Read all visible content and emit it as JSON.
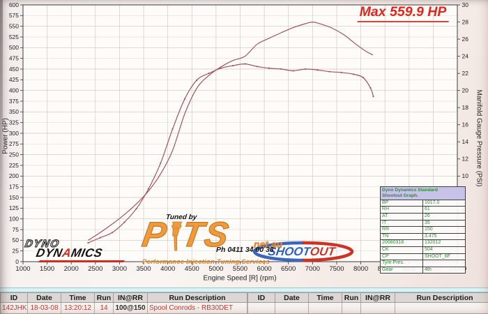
{
  "annotation": {
    "max_hp_label": "Max 559.9 HP"
  },
  "chart_data": {
    "type": "line",
    "title": "",
    "xlabel": "Engine Speed [R] (rpm)",
    "ylabel_left": "Power (HP)",
    "ylabel_right": "Manifold Gauge Pressure (PSI)",
    "x_axis": {
      "min": 1000,
      "max": 10000,
      "tick_step": 500
    },
    "y_left_axis": {
      "min": 0,
      "max": 600,
      "tick_step": 25
    },
    "y_right_axis": {
      "min": 0,
      "max": 30,
      "tick_step": 2
    },
    "grid": true,
    "line_color": "#a5525a",
    "max_power_hp": 559.9,
    "series": [
      {
        "name": "Power (HP)",
        "axis": "left",
        "markers": false,
        "x": [
          2350,
          2600,
          2850,
          3100,
          3350,
          3600,
          3850,
          4100,
          4350,
          4600,
          4850,
          5100,
          5350,
          5600,
          5850,
          6100,
          6350,
          6600,
          6850,
          7000,
          7150,
          7400,
          7650,
          7900,
          8100,
          8250
        ],
        "y": [
          50,
          68,
          88,
          110,
          135,
          165,
          205,
          260,
          345,
          405,
          435,
          455,
          470,
          480,
          508,
          522,
          535,
          547,
          556,
          559.9,
          556,
          546,
          530,
          508,
          492,
          483
        ]
      },
      {
        "name": "Manifold Gauge Pressure (PSI)",
        "axis": "right",
        "markers": true,
        "x": [
          2350,
          2600,
          2850,
          3100,
          3350,
          3600,
          3850,
          4100,
          4350,
          4600,
          4850,
          5100,
          5350,
          5600,
          5850,
          6100,
          6350,
          6600,
          6850,
          7100,
          7350,
          7600,
          7850,
          8050,
          8200,
          8260
        ],
        "y": [
          2.2,
          2.8,
          3.4,
          4.6,
          6.2,
          8.5,
          11.5,
          15.5,
          19.0,
          21.2,
          22.0,
          22.6,
          22.9,
          23.1,
          22.8,
          22.6,
          22.5,
          22.3,
          22.5,
          22.4,
          22.2,
          22.1,
          21.9,
          21.5,
          20.3,
          19.3
        ]
      }
    ]
  },
  "overlay_table": {
    "header_line1": "Dyno Dynamics Standard",
    "header_line2": "Shootout Graph.",
    "rows": [
      [
        "BP",
        "1017.0"
      ],
      [
        "RH",
        "61"
      ],
      [
        "AT",
        "26"
      ],
      [
        "IT",
        "35"
      ],
      [
        "RR",
        "150"
      ],
      [
        "TN",
        "3.475"
      ],
      [
        "20080318",
        "132012"
      ],
      [
        "CK",
        "504"
      ],
      [
        "CP",
        "SHOOT_6F"
      ],
      [
        "Tyre Pres.",
        ""
      ],
      [
        "Gear",
        "4th"
      ]
    ]
  },
  "logos": {
    "dyno": {
      "line1": "DYNO",
      "line2_a": "DYN",
      "line2_b": "A",
      "line2_c": "MICS"
    },
    "pits": {
      "tagline": "Tuned by",
      "p": "P",
      "ts": "TS",
      "domain": ".net.au",
      "phone": "Ph 0411 34 00 33",
      "subtitle": "Performance Injection Tuning Services"
    },
    "shootout": {
      "part1": "SHOOT",
      "part2": "OUT",
      "blue": "#3a66c0",
      "red": "#cc3327"
    }
  },
  "run_tables": {
    "headers": [
      "ID",
      "Date",
      "Time",
      "Run",
      "IN@RR",
      "Run Description"
    ],
    "left": {
      "rows": [
        {
          "cells": [
            "142JHK",
            "18-03-08",
            "13:20:12",
            "14",
            "100@150",
            "Spool Conrods - RB30DET"
          ],
          "colors": [
            "#bf3a33",
            "#bf3a33",
            "#bf3a33",
            "#bf3a33",
            "#2a2a2a",
            "#bf3a33"
          ]
        }
      ]
    },
    "right": {
      "rows": [
        {
          "cells": [
            "",
            "",
            "",
            "",
            "",
            ""
          ],
          "colors": []
        }
      ]
    }
  }
}
